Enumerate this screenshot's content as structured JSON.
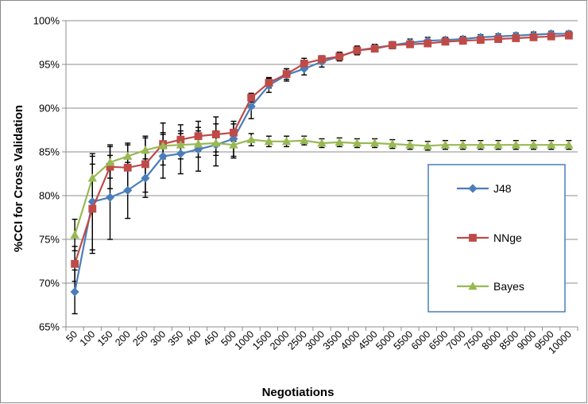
{
  "chart_data": {
    "type": "line",
    "title": "",
    "xlabel": "Negotiations",
    "ylabel": "%CCI for Cross Validation",
    "categories": [
      "50",
      "100",
      "150",
      "200",
      "250",
      "300",
      "350",
      "400",
      "450",
      "500",
      "1000",
      "1500",
      "2000",
      "2500",
      "3000",
      "3500",
      "4000",
      "4500",
      "5000",
      "5500",
      "6000",
      "6500",
      "7000",
      "7500",
      "8000",
      "8500",
      "9000",
      "9500",
      "10000"
    ],
    "ylim": [
      65,
      100
    ],
    "yticks": [
      65,
      70,
      75,
      80,
      85,
      90,
      95,
      100
    ],
    "ytick_labels": [
      "65%",
      "70%",
      "75%",
      "80%",
      "85%",
      "90%",
      "95%",
      "100%"
    ],
    "grid": true,
    "legend_position": "right",
    "series": [
      {
        "name": "J48",
        "color": "#4a7ebb",
        "marker": "diamond",
        "values": [
          69.0,
          79.3,
          79.8,
          80.6,
          82.0,
          84.5,
          84.8,
          85.3,
          85.8,
          86.5,
          90.2,
          92.6,
          93.8,
          94.5,
          95.3,
          95.9,
          96.6,
          96.9,
          97.2,
          97.5,
          97.7,
          97.8,
          97.9,
          98.1,
          98.2,
          98.3,
          98.4,
          98.5,
          98.5
        ],
        "error": [
          2.5,
          5.5,
          4.8,
          3.2,
          2.2,
          2.5,
          2.3,
          2.5,
          2.4,
          2.0,
          1.4,
          0.8,
          0.7,
          0.7,
          0.6,
          0.5,
          0.5,
          0.4,
          0.4,
          0.4,
          0.4,
          0.3,
          0.3,
          0.3,
          0.3,
          0.3,
          0.3,
          0.3,
          0.3
        ]
      },
      {
        "name": "NNge",
        "color": "#be4b48",
        "marker": "square",
        "values": [
          72.2,
          78.5,
          83.3,
          83.2,
          83.6,
          85.9,
          86.4,
          86.8,
          87.0,
          87.2,
          91.2,
          92.9,
          93.9,
          95.1,
          95.6,
          95.9,
          96.6,
          96.8,
          97.2,
          97.3,
          97.4,
          97.6,
          97.7,
          97.8,
          97.9,
          98.0,
          98.1,
          98.2,
          98.3
        ],
        "error": [
          2.0,
          5.1,
          2.5,
          2.6,
          3.2,
          2.4,
          1.7,
          1.7,
          2.0,
          1.0,
          0.5,
          0.6,
          0.6,
          0.6,
          0.4,
          0.4,
          0.4,
          0.3,
          0.3,
          0.3,
          0.3,
          0.3,
          0.3,
          0.3,
          0.3,
          0.3,
          0.3,
          0.3,
          0.3
        ]
      },
      {
        "name": "Bayes",
        "color": "#98b954",
        "marker": "triangle",
        "values": [
          75.5,
          82.0,
          83.8,
          84.5,
          85.2,
          85.7,
          85.8,
          85.9,
          86.0,
          85.8,
          86.4,
          86.2,
          86.2,
          86.3,
          86.0,
          86.1,
          86.0,
          86.0,
          85.9,
          85.8,
          85.7,
          85.8,
          85.8,
          85.8,
          85.8,
          85.8,
          85.8,
          85.8,
          85.8
        ],
        "error": [
          1.8,
          2.5,
          1.8,
          1.5,
          1.4,
          1.5,
          1.6,
          1.5,
          1.4,
          1.5,
          0.7,
          0.6,
          0.6,
          0.5,
          0.5,
          0.5,
          0.5,
          0.5,
          0.5,
          0.5,
          0.5,
          0.5,
          0.5,
          0.5,
          0.5,
          0.5,
          0.5,
          0.5,
          0.5
        ]
      }
    ]
  }
}
